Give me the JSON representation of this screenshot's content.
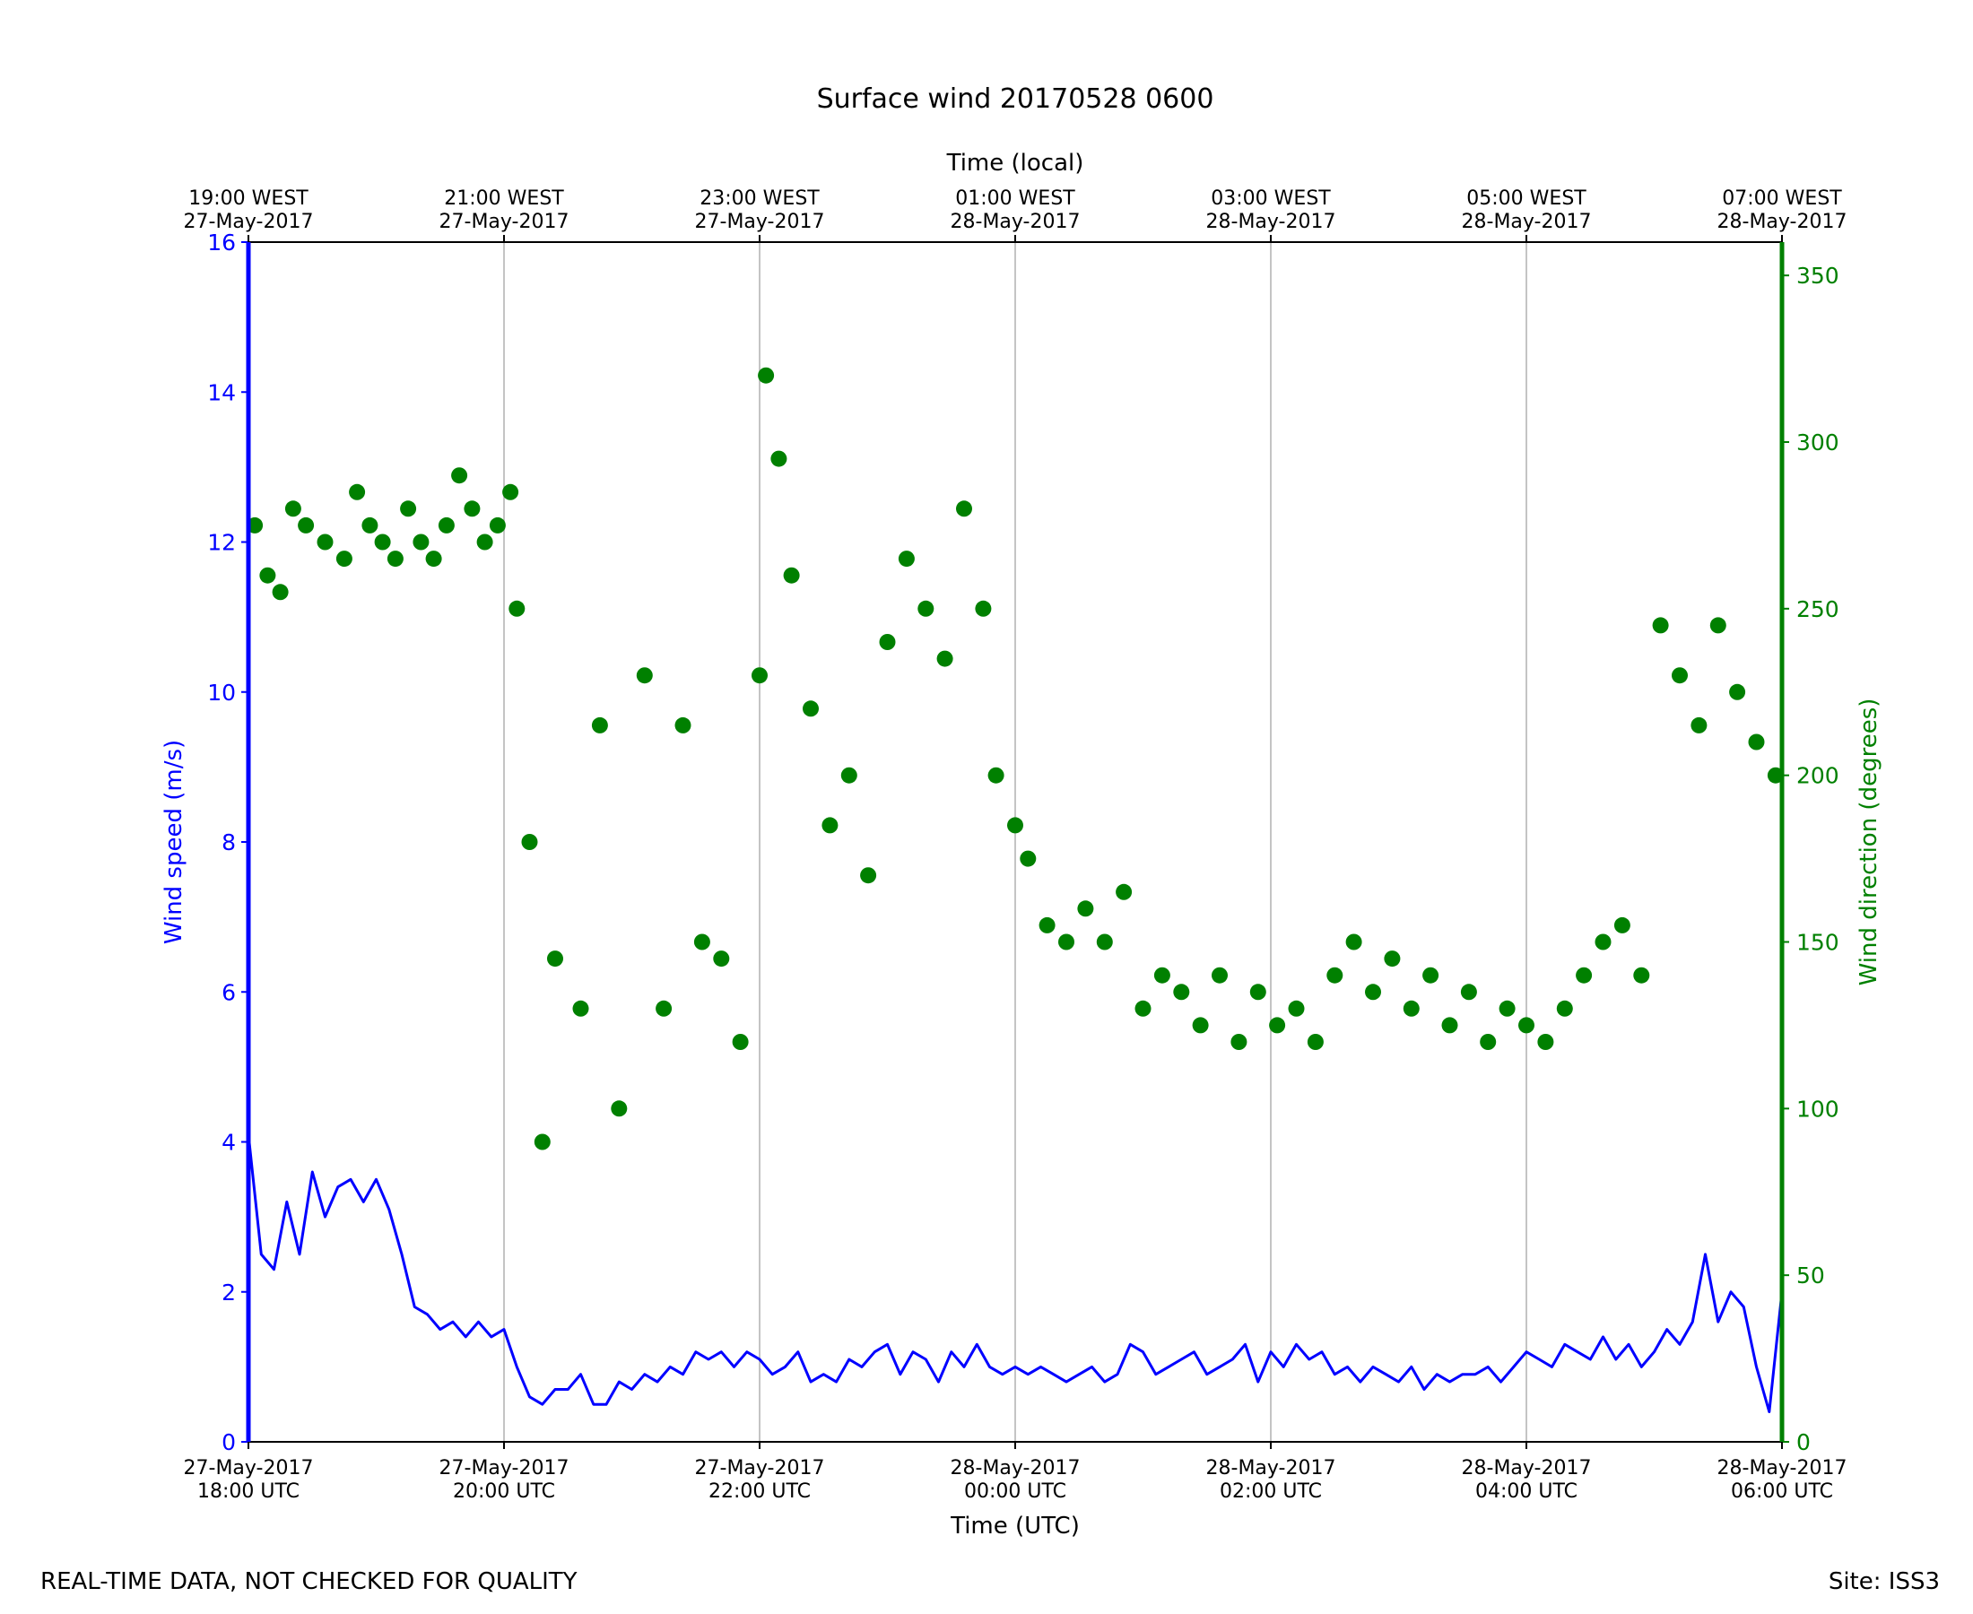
{
  "chart_data": {
    "type": "line+scatter",
    "title": "Surface wind 20170528 0600",
    "top_axis_label": "Time (local)",
    "x_axis_label": "Time (UTC)",
    "left_axis_label": "Wind speed (m/s)",
    "right_axis_label": "Wind direction (degrees)",
    "footer_left": "REAL-TIME DATA, NOT CHECKED FOR QUALITY",
    "footer_right": "Site: ISS3",
    "x_range_hours": [
      0,
      12
    ],
    "left_ylim": [
      0,
      16
    ],
    "right_ylim": [
      0,
      360
    ],
    "left_ticks": [
      "0",
      "2",
      "4",
      "6",
      "8",
      "10",
      "12",
      "14",
      "16"
    ],
    "right_ticks": [
      "0",
      "50",
      "100",
      "150",
      "200",
      "250",
      "300",
      "350"
    ],
    "x_ticks": [
      {
        "hour": 0,
        "date": "27-May-2017",
        "time": "18:00 UTC",
        "local_time": "19:00 WEST",
        "local_date": "27-May-2017"
      },
      {
        "hour": 2,
        "date": "27-May-2017",
        "time": "20:00 UTC",
        "local_time": "21:00 WEST",
        "local_date": "27-May-2017"
      },
      {
        "hour": 4,
        "date": "27-May-2017",
        "time": "22:00 UTC",
        "local_time": "23:00 WEST",
        "local_date": "27-May-2017"
      },
      {
        "hour": 6,
        "date": "28-May-2017",
        "time": "00:00 UTC",
        "local_time": "01:00 WEST",
        "local_date": "28-May-2017"
      },
      {
        "hour": 8,
        "date": "28-May-2017",
        "time": "02:00 UTC",
        "local_time": "03:00 WEST",
        "local_date": "28-May-2017"
      },
      {
        "hour": 10,
        "date": "28-May-2017",
        "time": "04:00 UTC",
        "local_time": "05:00 WEST",
        "local_date": "28-May-2017"
      },
      {
        "hour": 12,
        "date": "28-May-2017",
        "time": "06:00 UTC",
        "local_time": "07:00 WEST",
        "local_date": "28-May-2017"
      }
    ],
    "series": [
      {
        "name": "Wind speed",
        "axis": "left",
        "kind": "line",
        "color": "#0000ff",
        "x_hours": [
          0,
          0.1,
          0.2,
          0.3,
          0.4,
          0.5,
          0.6,
          0.7,
          0.8,
          0.9,
          1,
          1.1,
          1.2,
          1.3,
          1.4,
          1.5,
          1.6,
          1.7,
          1.8,
          1.9,
          2,
          2.1,
          2.2,
          2.3,
          2.4,
          2.5,
          2.6,
          2.7,
          2.8,
          2.9,
          3,
          3.1,
          3.2,
          3.3,
          3.4,
          3.5,
          3.6,
          3.7,
          3.8,
          3.9,
          4,
          4.1,
          4.2,
          4.3,
          4.4,
          4.5,
          4.6,
          4.7,
          4.8,
          4.9,
          5,
          5.1,
          5.2,
          5.3,
          5.4,
          5.5,
          5.6,
          5.7,
          5.8,
          5.9,
          6,
          6.1,
          6.2,
          6.3,
          6.4,
          6.5,
          6.6,
          6.7,
          6.8,
          6.9,
          7,
          7.1,
          7.2,
          7.3,
          7.4,
          7.5,
          7.6,
          7.7,
          7.8,
          7.9,
          8,
          8.1,
          8.2,
          8.3,
          8.4,
          8.5,
          8.6,
          8.7,
          8.8,
          8.9,
          9,
          9.1,
          9.2,
          9.3,
          9.4,
          9.5,
          9.6,
          9.7,
          9.8,
          9.9,
          10,
          10.1,
          10.2,
          10.3,
          10.4,
          10.5,
          10.6,
          10.7,
          10.8,
          10.9,
          11,
          11.1,
          11.2,
          11.3,
          11.4,
          11.5,
          11.6,
          11.7,
          11.8,
          11.9,
          12
        ],
        "values": [
          4.1,
          2.5,
          2.3,
          3.2,
          2.5,
          3.6,
          3.0,
          3.4,
          3.5,
          3.2,
          3.5,
          3.1,
          2.5,
          1.8,
          1.7,
          1.5,
          1.6,
          1.4,
          1.6,
          1.4,
          1.5,
          1.0,
          0.6,
          0.5,
          0.7,
          0.7,
          0.9,
          0.5,
          0.5,
          0.8,
          0.7,
          0.9,
          0.8,
          1.0,
          0.9,
          1.2,
          1.1,
          1.2,
          1.0,
          1.2,
          1.1,
          0.9,
          1.0,
          1.2,
          0.8,
          0.9,
          0.8,
          1.1,
          1.0,
          1.2,
          1.3,
          0.9,
          1.2,
          1.1,
          0.8,
          1.2,
          1.0,
          1.3,
          1.0,
          0.9,
          1.0,
          0.9,
          1.0,
          0.9,
          0.8,
          0.9,
          1.0,
          0.8,
          0.9,
          1.3,
          1.2,
          0.9,
          1.0,
          1.1,
          1.2,
          0.9,
          1.0,
          1.1,
          1.3,
          0.8,
          1.2,
          1.0,
          1.3,
          1.1,
          1.2,
          0.9,
          1.0,
          0.8,
          1.0,
          0.9,
          0.8,
          1.0,
          0.7,
          0.9,
          0.8,
          0.9,
          0.9,
          1.0,
          0.8,
          1.0,
          1.2,
          1.1,
          1.0,
          1.3,
          1.2,
          1.1,
          1.4,
          1.1,
          1.3,
          1.0,
          1.2,
          1.5,
          1.3,
          1.6,
          2.5,
          1.6,
          2.0,
          1.8,
          1.0,
          0.4,
          2.0
        ]
      },
      {
        "name": "Wind direction",
        "axis": "right",
        "kind": "scatter",
        "color": "#008000",
        "x_hours": [
          0.05,
          0.15,
          0.25,
          0.35,
          0.45,
          0.6,
          0.75,
          0.85,
          0.95,
          1.05,
          1.15,
          1.25,
          1.35,
          1.45,
          1.55,
          1.65,
          1.75,
          1.85,
          1.95,
          2.05,
          2.1,
          2.2,
          2.3,
          2.4,
          2.6,
          2.75,
          2.9,
          3.1,
          3.25,
          3.4,
          3.55,
          3.7,
          3.85,
          4.0,
          4.05,
          4.15,
          4.25,
          4.4,
          4.55,
          4.7,
          4.85,
          5.0,
          5.15,
          5.3,
          5.45,
          5.6,
          5.75,
          5.85,
          6.0,
          6.1,
          6.25,
          6.4,
          6.55,
          6.7,
          6.85,
          7.0,
          7.15,
          7.3,
          7.45,
          7.6,
          7.75,
          7.9,
          8.05,
          8.2,
          8.35,
          8.5,
          8.65,
          8.8,
          8.95,
          9.1,
          9.25,
          9.4,
          9.55,
          9.7,
          9.85,
          10.0,
          10.15,
          10.3,
          10.45,
          10.6,
          10.75,
          10.9,
          11.05,
          11.2,
          11.35,
          11.5,
          11.65,
          11.8,
          11.95
        ],
        "values": [
          275,
          260,
          255,
          280,
          275,
          270,
          265,
          285,
          275,
          270,
          265,
          280,
          270,
          265,
          275,
          290,
          280,
          270,
          275,
          285,
          250,
          180,
          90,
          145,
          130,
          215,
          100,
          230,
          130,
          215,
          150,
          145,
          120,
          230,
          320,
          295,
          260,
          220,
          185,
          200,
          170,
          240,
          265,
          250,
          235,
          280,
          250,
          200,
          185,
          175,
          155,
          150,
          160,
          150,
          165,
          130,
          140,
          135,
          125,
          140,
          120,
          135,
          125,
          130,
          120,
          140,
          150,
          135,
          145,
          130,
          140,
          125,
          135,
          120,
          130,
          125,
          120,
          130,
          140,
          150,
          155,
          140,
          245,
          230,
          215,
          245,
          225,
          210,
          200
        ]
      }
    ]
  }
}
